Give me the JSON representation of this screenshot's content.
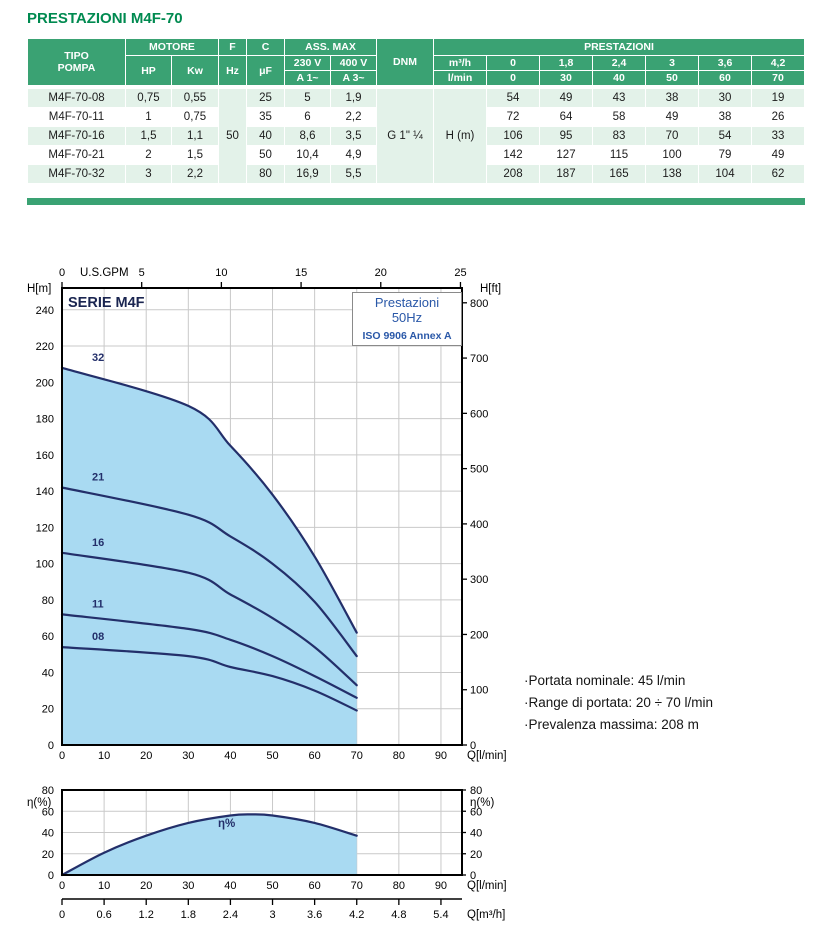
{
  "page": {
    "title": "PRESTAZIONI M4F-70"
  },
  "table": {
    "headers": {
      "tipo_pompa": "TIPO\nPOMPA",
      "motore": "MOTORE",
      "hp": "HP",
      "kw": "Kw",
      "f": "F",
      "hz": "Hz",
      "c": "C",
      "uf": "μF",
      "ass_max": "ASS. MAX",
      "v230": "230 V",
      "v400": "400 V",
      "a1": "A 1~",
      "a3": "A 3~",
      "dnm": "DNM",
      "prestazioni": "PRESTAZIONI",
      "m3h": "m³/h",
      "lmin": "l/min",
      "hm": "H (m)",
      "m3h_values": [
        "0",
        "1,8",
        "2,4",
        "3",
        "3,6",
        "4,2"
      ],
      "lmin_values": [
        "0",
        "30",
        "40",
        "50",
        "60",
        "70"
      ]
    },
    "shared": {
      "hz_value": "50",
      "dnm_value": "G 1\" ¼"
    },
    "rows": [
      {
        "tipo": "M4F-70-08",
        "hp": "0,75",
        "kw": "0,55",
        "uf": "25",
        "a230": "5",
        "a400": "1,9",
        "h": [
          "54",
          "49",
          "43",
          "38",
          "30",
          "19"
        ]
      },
      {
        "tipo": "M4F-70-11",
        "hp": "1",
        "kw": "0,75",
        "uf": "35",
        "a230": "6",
        "a400": "2,2",
        "h": [
          "72",
          "64",
          "58",
          "49",
          "38",
          "26"
        ]
      },
      {
        "tipo": "M4F-70-16",
        "hp": "1,5",
        "kw": "1,1",
        "uf": "40",
        "a230": "8,6",
        "a400": "3,5",
        "h": [
          "106",
          "95",
          "83",
          "70",
          "54",
          "33"
        ]
      },
      {
        "tipo": "M4F-70-21",
        "hp": "2",
        "kw": "1,5",
        "uf": "50",
        "a230": "10,4",
        "a400": "4,9",
        "h": [
          "142",
          "127",
          "115",
          "100",
          "79",
          "49"
        ]
      },
      {
        "tipo": "M4F-70-32",
        "hp": "3",
        "kw": "2,2",
        "uf": "80",
        "a230": "16,9",
        "a400": "5,5",
        "h": [
          "208",
          "187",
          "165",
          "138",
          "104",
          "62"
        ]
      }
    ]
  },
  "chart_data": [
    {
      "type": "line",
      "title": "SERIE M4F",
      "legend_box": [
        "Prestazioni",
        "50Hz",
        "ISO 9906 Annex A"
      ],
      "xlabel": "Q[l/min]",
      "xlabel_top": "U.S.GPM",
      "ylabel_left": "H[m]",
      "ylabel_right": "H[ft]",
      "xlim": [
        0,
        95
      ],
      "ylim": [
        0,
        252
      ],
      "grid": true,
      "x_ticks": [
        0,
        10,
        20,
        30,
        40,
        50,
        60,
        70,
        80,
        90
      ],
      "x_ticks_top_gpm": [
        0,
        5,
        10,
        15,
        20,
        25
      ],
      "y_ticks_left_m": [
        0,
        20,
        40,
        60,
        80,
        100,
        120,
        140,
        160,
        180,
        200,
        220,
        240
      ],
      "y_ticks_right_ft": [
        0,
        100,
        200,
        300,
        400,
        500,
        600,
        700,
        800
      ],
      "x": [
        0,
        30,
        40,
        50,
        60,
        70
      ],
      "series": [
        {
          "name": "32",
          "values": [
            208,
            187,
            165,
            138,
            104,
            62
          ]
        },
        {
          "name": "21",
          "values": [
            142,
            127,
            115,
            100,
            79,
            49
          ]
        },
        {
          "name": "16",
          "values": [
            106,
            95,
            83,
            70,
            54,
            33
          ]
        },
        {
          "name": "11",
          "values": [
            72,
            64,
            58,
            49,
            38,
            26
          ]
        },
        {
          "name": "08",
          "values": [
            54,
            49,
            43,
            38,
            30,
            19
          ]
        }
      ],
      "styles": {
        "line_color": "#232f6a",
        "fill_color": "#a9daf2",
        "grid_color": "#c9c9c9",
        "legend_text_color": "#2a58a8",
        "title_color": "#1a2550"
      }
    },
    {
      "type": "line",
      "curve_label": "η%",
      "xlabel": "Q[l/min]",
      "xlabel2": "Q[m³/h]",
      "ylabel_left": "η(%)",
      "ylabel_right": "η(%)",
      "xlim": [
        0,
        95
      ],
      "ylim": [
        0,
        80
      ],
      "grid": true,
      "x_ticks": [
        0,
        10,
        20,
        30,
        40,
        50,
        60,
        70,
        80,
        90
      ],
      "x_ticks_m3h": [
        "0",
        "0.6",
        "1.2",
        "1.8",
        "2.4",
        "3",
        "3.6",
        "4.2",
        "4.8",
        "5.4"
      ],
      "y_ticks": [
        0,
        20,
        40,
        60,
        80
      ],
      "series": [
        {
          "name": "η%",
          "x": [
            0,
            10,
            20,
            30,
            40,
            45,
            50,
            60,
            70
          ],
          "values": [
            0,
            21,
            37,
            49,
            56,
            57,
            56,
            49,
            37
          ]
        }
      ]
    }
  ],
  "notes": {
    "items": [
      "·Portata nominale: 45 l/min",
      "·Range di portata: 20 ÷ 70 l/min",
      "·Prevalenza massima: 208 m"
    ]
  }
}
